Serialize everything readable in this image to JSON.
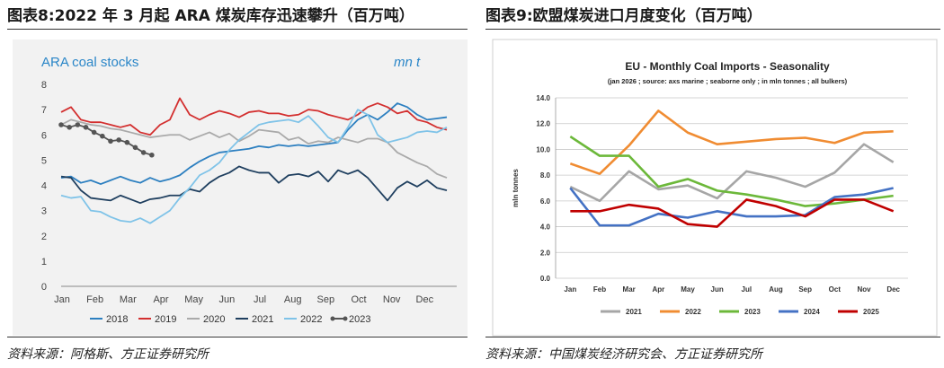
{
  "left": {
    "figure_title": "图表8:2022 年 3 月起 ARA 煤炭库存迅速攀升（百万吨）",
    "source": "资料来源：阿格斯、方正证券研究所"
  },
  "right": {
    "figure_title": "图表9:欧盟煤炭进口月度变化（百万吨）",
    "source": "资料来源：中国煤炭经济研究会、方正证券研究所"
  },
  "chart_data": [
    {
      "type": "line",
      "title": "ARA coal stocks",
      "unit_label": "mn t",
      "categories": [
        "Jan",
        "Feb",
        "Mar",
        "Apr",
        "May",
        "Jun",
        "Jul",
        "Aug",
        "Sep",
        "Oct",
        "Nov",
        "Dec"
      ],
      "ylim": [
        0,
        8
      ],
      "yticks": [
        "0",
        "1",
        "2",
        "3",
        "4",
        "5",
        "6",
        "7",
        "8"
      ],
      "grid": false,
      "legend_position": "bottom",
      "series": [
        {
          "name": "2018",
          "color": "#2c7fc0",
          "x": [
            0,
            0.3,
            0.6,
            0.9,
            1.2,
            1.5,
            1.8,
            2.1,
            2.4,
            2.7,
            3.0,
            3.3,
            3.6,
            3.9,
            4.2,
            4.5,
            4.8,
            5.1,
            5.4,
            5.7,
            6.0,
            6.3,
            6.6,
            6.9,
            7.2,
            7.5,
            7.8,
            8.1,
            8.4,
            8.7,
            9.0,
            9.3,
            9.6,
            9.9,
            10.2,
            10.5,
            10.8,
            11.1,
            11.4,
            11.7
          ],
          "values": [
            4.3,
            4.35,
            4.1,
            4.2,
            4.05,
            4.2,
            4.35,
            4.2,
            4.1,
            4.3,
            4.15,
            4.25,
            4.4,
            4.7,
            4.95,
            5.15,
            5.3,
            5.35,
            5.4,
            5.45,
            5.55,
            5.5,
            5.6,
            5.55,
            5.6,
            5.55,
            5.6,
            5.65,
            5.7,
            6.2,
            6.6,
            6.8,
            6.6,
            6.9,
            7.25,
            7.1,
            6.8,
            6.6,
            6.65,
            6.7
          ]
        },
        {
          "name": "2019",
          "color": "#d32f2f",
          "x": [
            0,
            0.3,
            0.6,
            0.9,
            1.2,
            1.5,
            1.8,
            2.1,
            2.4,
            2.7,
            3.0,
            3.3,
            3.6,
            3.9,
            4.2,
            4.5,
            4.8,
            5.1,
            5.4,
            5.7,
            6.0,
            6.3,
            6.6,
            6.9,
            7.2,
            7.5,
            7.8,
            8.1,
            8.4,
            8.7,
            9.0,
            9.3,
            9.6,
            9.9,
            10.2,
            10.5,
            10.8,
            11.1,
            11.4,
            11.7
          ],
          "values": [
            6.9,
            7.1,
            6.6,
            6.5,
            6.5,
            6.4,
            6.3,
            6.4,
            6.1,
            6.0,
            6.4,
            6.6,
            7.45,
            6.8,
            6.6,
            6.8,
            6.95,
            6.85,
            6.7,
            6.9,
            6.95,
            6.85,
            6.85,
            6.75,
            6.8,
            7.0,
            6.95,
            6.8,
            6.7,
            6.6,
            6.8,
            7.1,
            7.25,
            7.1,
            6.85,
            6.95,
            6.6,
            6.5,
            6.3,
            6.2
          ]
        },
        {
          "name": "2020",
          "color": "#aaaaaa",
          "x": [
            0,
            0.3,
            0.6,
            0.9,
            1.2,
            1.5,
            1.8,
            2.1,
            2.4,
            2.7,
            3.0,
            3.3,
            3.6,
            3.9,
            4.2,
            4.5,
            4.8,
            5.1,
            5.4,
            5.7,
            6.0,
            6.3,
            6.6,
            6.9,
            7.2,
            7.5,
            7.8,
            8.1,
            8.4,
            8.7,
            9.0,
            9.3,
            9.6,
            9.9,
            10.2,
            10.5,
            10.8,
            11.1,
            11.4,
            11.7
          ],
          "values": [
            6.4,
            6.6,
            6.5,
            6.4,
            6.35,
            6.25,
            6.2,
            6.1,
            6.0,
            5.9,
            5.95,
            6.0,
            6.0,
            5.8,
            5.95,
            6.1,
            5.9,
            6.05,
            5.75,
            5.95,
            6.2,
            6.15,
            6.1,
            5.8,
            5.9,
            5.65,
            5.75,
            5.7,
            5.9,
            5.8,
            5.7,
            5.85,
            5.85,
            5.7,
            5.3,
            5.1,
            4.9,
            4.75,
            4.45,
            4.3
          ]
        },
        {
          "name": "2021",
          "color": "#1f3f5f",
          "x": [
            0,
            0.3,
            0.6,
            0.9,
            1.2,
            1.5,
            1.8,
            2.1,
            2.4,
            2.7,
            3.0,
            3.3,
            3.6,
            3.9,
            4.2,
            4.5,
            4.8,
            5.1,
            5.4,
            5.7,
            6.0,
            6.3,
            6.6,
            6.9,
            7.2,
            7.5,
            7.8,
            8.1,
            8.4,
            8.7,
            9.0,
            9.3,
            9.6,
            9.9,
            10.2,
            10.5,
            10.8,
            11.1,
            11.4,
            11.7
          ],
          "values": [
            4.35,
            4.3,
            3.8,
            3.5,
            3.45,
            3.4,
            3.6,
            3.45,
            3.3,
            3.45,
            3.5,
            3.6,
            3.6,
            3.85,
            3.75,
            4.1,
            4.35,
            4.5,
            4.75,
            4.6,
            4.5,
            4.5,
            4.1,
            4.4,
            4.45,
            4.35,
            4.55,
            4.15,
            4.6,
            4.45,
            4.6,
            4.3,
            3.85,
            3.4,
            3.9,
            4.15,
            3.95,
            4.2,
            3.9,
            3.8
          ]
        },
        {
          "name": "2022",
          "color": "#7fc3e8",
          "x": [
            0,
            0.3,
            0.6,
            0.9,
            1.2,
            1.5,
            1.8,
            2.1,
            2.4,
            2.7,
            3.0,
            3.3,
            3.6,
            3.9,
            4.2,
            4.5,
            4.8,
            5.1,
            5.4,
            5.7,
            6.0,
            6.3,
            6.6,
            6.9,
            7.2,
            7.5,
            7.8,
            8.1,
            8.4,
            8.7,
            9.0,
            9.3,
            9.6,
            9.9,
            10.2,
            10.5,
            10.8,
            11.1,
            11.4,
            11.7
          ],
          "values": [
            3.6,
            3.5,
            3.55,
            3.0,
            2.95,
            2.75,
            2.6,
            2.55,
            2.7,
            2.5,
            2.75,
            3.0,
            3.5,
            3.9,
            4.4,
            4.6,
            4.9,
            5.4,
            5.8,
            6.1,
            6.4,
            6.5,
            6.55,
            6.6,
            6.5,
            6.75,
            6.35,
            5.9,
            5.7,
            6.3,
            7.0,
            6.8,
            6.0,
            5.7,
            5.8,
            5.9,
            6.1,
            6.15,
            6.1,
            6.3
          ]
        },
        {
          "name": "2023",
          "color": "#555555",
          "marker": true,
          "x": [
            0,
            0.25,
            0.5,
            0.75,
            1.0,
            1.25,
            1.5,
            1.75,
            2.0,
            2.25,
            2.5,
            2.75
          ],
          "values": [
            6.4,
            6.3,
            6.4,
            6.3,
            6.1,
            5.95,
            5.75,
            5.8,
            5.7,
            5.5,
            5.3,
            5.2
          ]
        }
      ]
    },
    {
      "type": "line",
      "title": "EU - Monthly Coal Imports - Seasonality",
      "subtitle": "(jan 2026 ; source: axs marine ; seaborne only ; in mln tonnes ; all bulkers)",
      "ylabel": "mln tonnes",
      "categories": [
        "Jan",
        "Feb",
        "Mar",
        "Apr",
        "May",
        "Jun",
        "Jul",
        "Aug",
        "Sep",
        "Oct",
        "Nov",
        "Dec"
      ],
      "ylim": [
        0,
        14
      ],
      "yticks": [
        "0.0",
        "2.0",
        "4.0",
        "6.0",
        "8.0",
        "10.0",
        "12.0",
        "14.0"
      ],
      "grid": true,
      "legend_position": "bottom",
      "series": [
        {
          "name": "2021",
          "color": "#a6a6a6",
          "values": [
            7.1,
            6.0,
            8.3,
            6.9,
            7.2,
            6.2,
            8.3,
            7.8,
            7.1,
            8.2,
            10.4,
            9.0
          ]
        },
        {
          "name": "2022",
          "color": "#f08c32",
          "values": [
            8.9,
            8.1,
            10.3,
            13.0,
            11.3,
            10.4,
            10.6,
            10.8,
            10.9,
            10.5,
            11.3,
            11.4
          ]
        },
        {
          "name": "2023",
          "color": "#6cb83a",
          "values": [
            11.0,
            9.5,
            9.5,
            7.1,
            7.7,
            6.8,
            6.5,
            6.1,
            5.6,
            5.8,
            6.1,
            6.4
          ]
        },
        {
          "name": "2024",
          "color": "#4472c4",
          "values": [
            7.0,
            4.1,
            4.1,
            5.0,
            4.7,
            5.2,
            4.8,
            4.8,
            4.9,
            6.3,
            6.5,
            7.0
          ]
        },
        {
          "name": "2025",
          "color": "#c00000",
          "values": [
            5.2,
            5.2,
            5.7,
            5.4,
            4.2,
            4.0,
            6.1,
            5.6,
            4.8,
            6.1,
            6.1,
            5.2
          ]
        }
      ]
    }
  ]
}
